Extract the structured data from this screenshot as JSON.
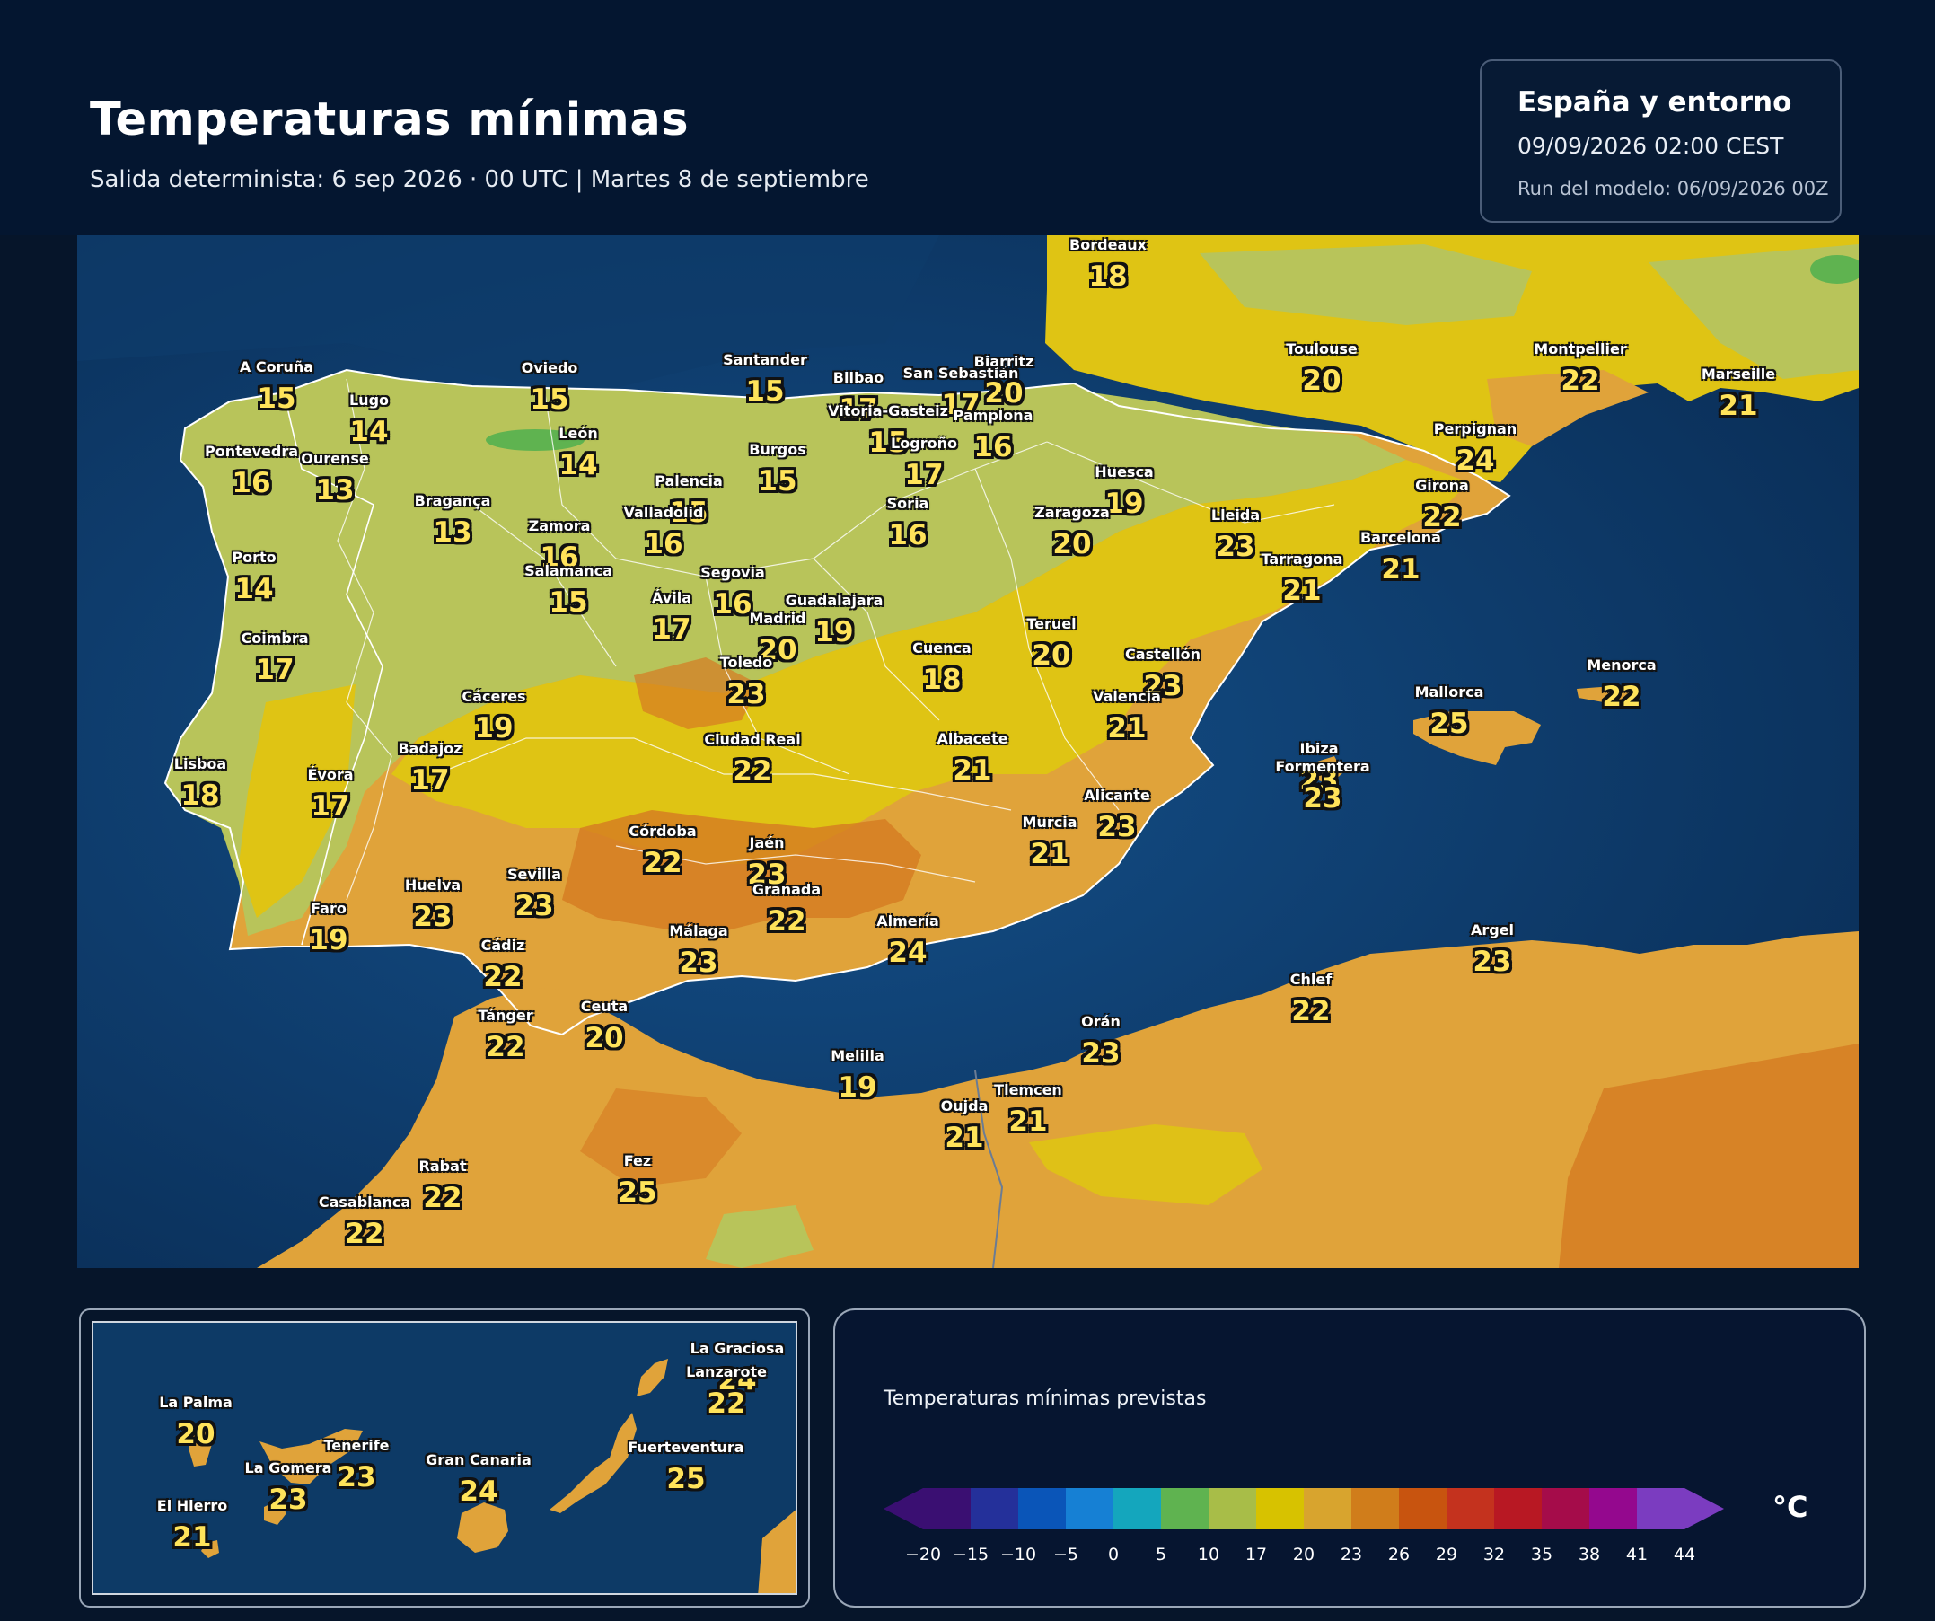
{
  "header": {
    "title": "Temperaturas mínimas",
    "subtitle": "Salida determinista: 6 sep 2026 · 00 UTC  |  Martes 8 de septiembre",
    "region": "España y entorno",
    "valid": "09/09/2026  02:00 CEST",
    "run": "Run del modelo: 06/09/2026 00Z"
  },
  "cities": [
    {
      "name": "Bordeaux",
      "value": "18"
    },
    {
      "name": "A Coruña",
      "value": "15"
    },
    {
      "name": "Lugo",
      "value": "14"
    },
    {
      "name": "Oviedo",
      "value": "15"
    },
    {
      "name": "Santander",
      "value": "15"
    },
    {
      "name": "Bilbao",
      "value": "17"
    },
    {
      "name": "San Sebastián",
      "value": "17"
    },
    {
      "name": "Biarritz",
      "value": "20"
    },
    {
      "name": "Toulouse",
      "value": "20"
    },
    {
      "name": "Montpellier",
      "value": "22"
    },
    {
      "name": "Marseille",
      "value": "21"
    },
    {
      "name": "Pontevedra",
      "value": "16"
    },
    {
      "name": "Ourense",
      "value": "13"
    },
    {
      "name": "León",
      "value": "14"
    },
    {
      "name": "Burgos",
      "value": "15"
    },
    {
      "name": "Vitoria-Gasteiz",
      "value": "15"
    },
    {
      "name": "Pamplona",
      "value": "16"
    },
    {
      "name": "Logroño",
      "value": "17"
    },
    {
      "name": "Perpignan",
      "value": "24"
    },
    {
      "name": "Bragança",
      "value": "13"
    },
    {
      "name": "Palencia",
      "value": "15"
    },
    {
      "name": "Huesca",
      "value": "19"
    },
    {
      "name": "Girona",
      "value": "22"
    },
    {
      "name": "Valladolid",
      "value": "16"
    },
    {
      "name": "Soria",
      "value": "16"
    },
    {
      "name": "Zaragoza",
      "value": "20"
    },
    {
      "name": "Lleida",
      "value": "23"
    },
    {
      "name": "Zamora",
      "value": "16"
    },
    {
      "name": "Barcelona",
      "value": "21"
    },
    {
      "name": "Porto",
      "value": "14"
    },
    {
      "name": "Tarragona",
      "value": "21"
    },
    {
      "name": "Salamanca",
      "value": "15"
    },
    {
      "name": "Segovia",
      "value": "16"
    },
    {
      "name": "Ávila",
      "value": "17"
    },
    {
      "name": "Guadalajara",
      "value": "19"
    },
    {
      "name": "Madrid",
      "value": "20"
    },
    {
      "name": "Teruel",
      "value": "20"
    },
    {
      "name": "Coimbra",
      "value": "17"
    },
    {
      "name": "Cuenca",
      "value": "18"
    },
    {
      "name": "Toledo",
      "value": "23"
    },
    {
      "name": "Castellón",
      "value": "23"
    },
    {
      "name": "Menorca",
      "value": "22"
    },
    {
      "name": "Mallorca",
      "value": "25"
    },
    {
      "name": "Cáceres",
      "value": "19"
    },
    {
      "name": "Valencia",
      "value": "21"
    },
    {
      "name": "Ciudad Real",
      "value": "22"
    },
    {
      "name": "Albacete",
      "value": "21"
    },
    {
      "name": "Badajoz",
      "value": "17"
    },
    {
      "name": "Ibiza",
      "value": "23"
    },
    {
      "name": "Formentera",
      "value": "23"
    },
    {
      "name": "Lisboa",
      "value": "18"
    },
    {
      "name": "Évora",
      "value": "17"
    },
    {
      "name": "Alicante",
      "value": "23"
    },
    {
      "name": "Murcia",
      "value": "21"
    },
    {
      "name": "Córdoba",
      "value": "22"
    },
    {
      "name": "Jaén",
      "value": "23"
    },
    {
      "name": "Granada",
      "value": "22"
    },
    {
      "name": "Huelva",
      "value": "23"
    },
    {
      "name": "Sevilla",
      "value": "23"
    },
    {
      "name": "Faro",
      "value": "19"
    },
    {
      "name": "Almería",
      "value": "24"
    },
    {
      "name": "Málaga",
      "value": "23"
    },
    {
      "name": "Cádiz",
      "value": "22"
    },
    {
      "name": "Argel",
      "value": "23"
    },
    {
      "name": "Chlef",
      "value": "22"
    },
    {
      "name": "Tánger",
      "value": "22"
    },
    {
      "name": "Ceuta",
      "value": "20"
    },
    {
      "name": "Orán",
      "value": "23"
    },
    {
      "name": "Melilla",
      "value": "19"
    },
    {
      "name": "Tlemcen",
      "value": "21"
    },
    {
      "name": "Oujda",
      "value": "21"
    },
    {
      "name": "Rabat",
      "value": "22"
    },
    {
      "name": "Fez",
      "value": "25"
    },
    {
      "name": "Casablanca",
      "value": "22"
    }
  ],
  "canarias": [
    {
      "name": "La Graciosa",
      "value": "24"
    },
    {
      "name": "Lanzarote",
      "value": "22"
    },
    {
      "name": "La Palma",
      "value": "20"
    },
    {
      "name": "Tenerife",
      "value": "23"
    },
    {
      "name": "La Gomera",
      "value": "23"
    },
    {
      "name": "Gran Canaria",
      "value": "24"
    },
    {
      "name": "Fuerteventura",
      "value": "25"
    },
    {
      "name": "El Hierro",
      "value": "21"
    }
  ],
  "legend": {
    "title": "Temperaturas mínimas previstas",
    "unit": "°C",
    "ticks": [
      "−20",
      "−15",
      "−10",
      "−5",
      "0",
      "5",
      "10",
      "17",
      "20",
      "23",
      "26",
      "29",
      "32",
      "35",
      "38",
      "41",
      "44"
    ],
    "colors": [
      "#3a0f72",
      "#24309a",
      "#0a55b8",
      "#1680d4",
      "#14a6bd",
      "#5fb350",
      "#a8bd48",
      "#d7c200",
      "#d8a42e",
      "#d07d1b",
      "#c8540f",
      "#c4321e",
      "#b81823",
      "#a50c4a",
      "#94088e",
      "#7b3cc0"
    ]
  },
  "colors": {
    "sea": "#0d3a66",
    "land_cool": "#b8c45a",
    "land_mid": "#dfc414",
    "land_warm": "#e0a33a",
    "land_hot": "#d57a22"
  }
}
